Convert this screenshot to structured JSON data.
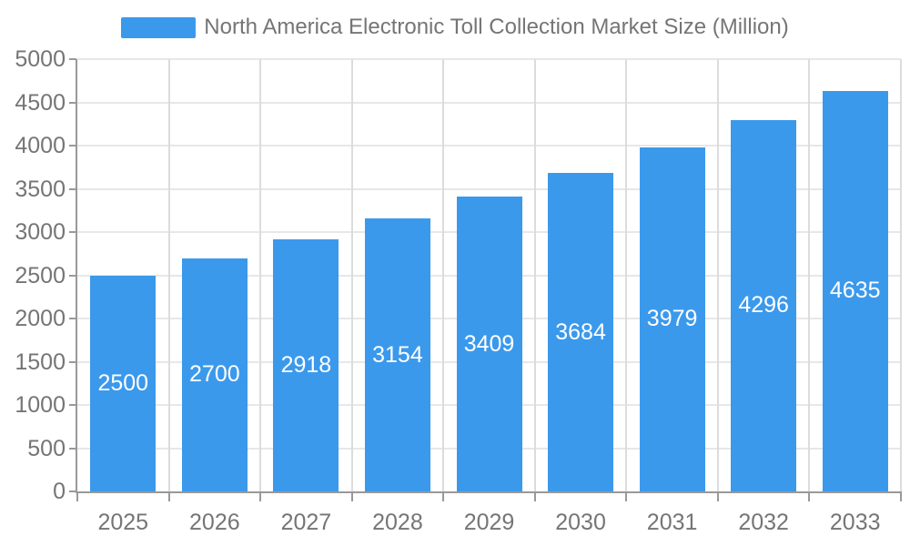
{
  "legend": {
    "label": "North America Electronic Toll Collection Market Size (Million)"
  },
  "chart_data": {
    "type": "bar",
    "title": "",
    "xlabel": "",
    "ylabel": "",
    "series_name": "North America Electronic Toll Collection Market Size (Million)",
    "categories": [
      "2025",
      "2026",
      "2027",
      "2028",
      "2029",
      "2030",
      "2031",
      "2032",
      "2033"
    ],
    "values": [
      2500,
      2700,
      2918,
      3154,
      3409,
      3684,
      3979,
      4296,
      4635
    ],
    "ylim": [
      0,
      5000
    ],
    "ytick_step": 500,
    "ytick_labels": [
      "0",
      "500",
      "1000",
      "1500",
      "2000",
      "2500",
      "3000",
      "3500",
      "4000",
      "4500",
      "5000"
    ],
    "grid": true,
    "legend_position": "top-center",
    "bar_labels_inside": true,
    "colors": {
      "bar": "#3b99ec",
      "bar_label": "#ffffff",
      "axis_line": "#999999",
      "grid_h": "#e7e7e7",
      "grid_v": "#dcdcdc",
      "tick_text": "#757575",
      "legend_text": "#757575",
      "background": "#ffffff"
    }
  }
}
